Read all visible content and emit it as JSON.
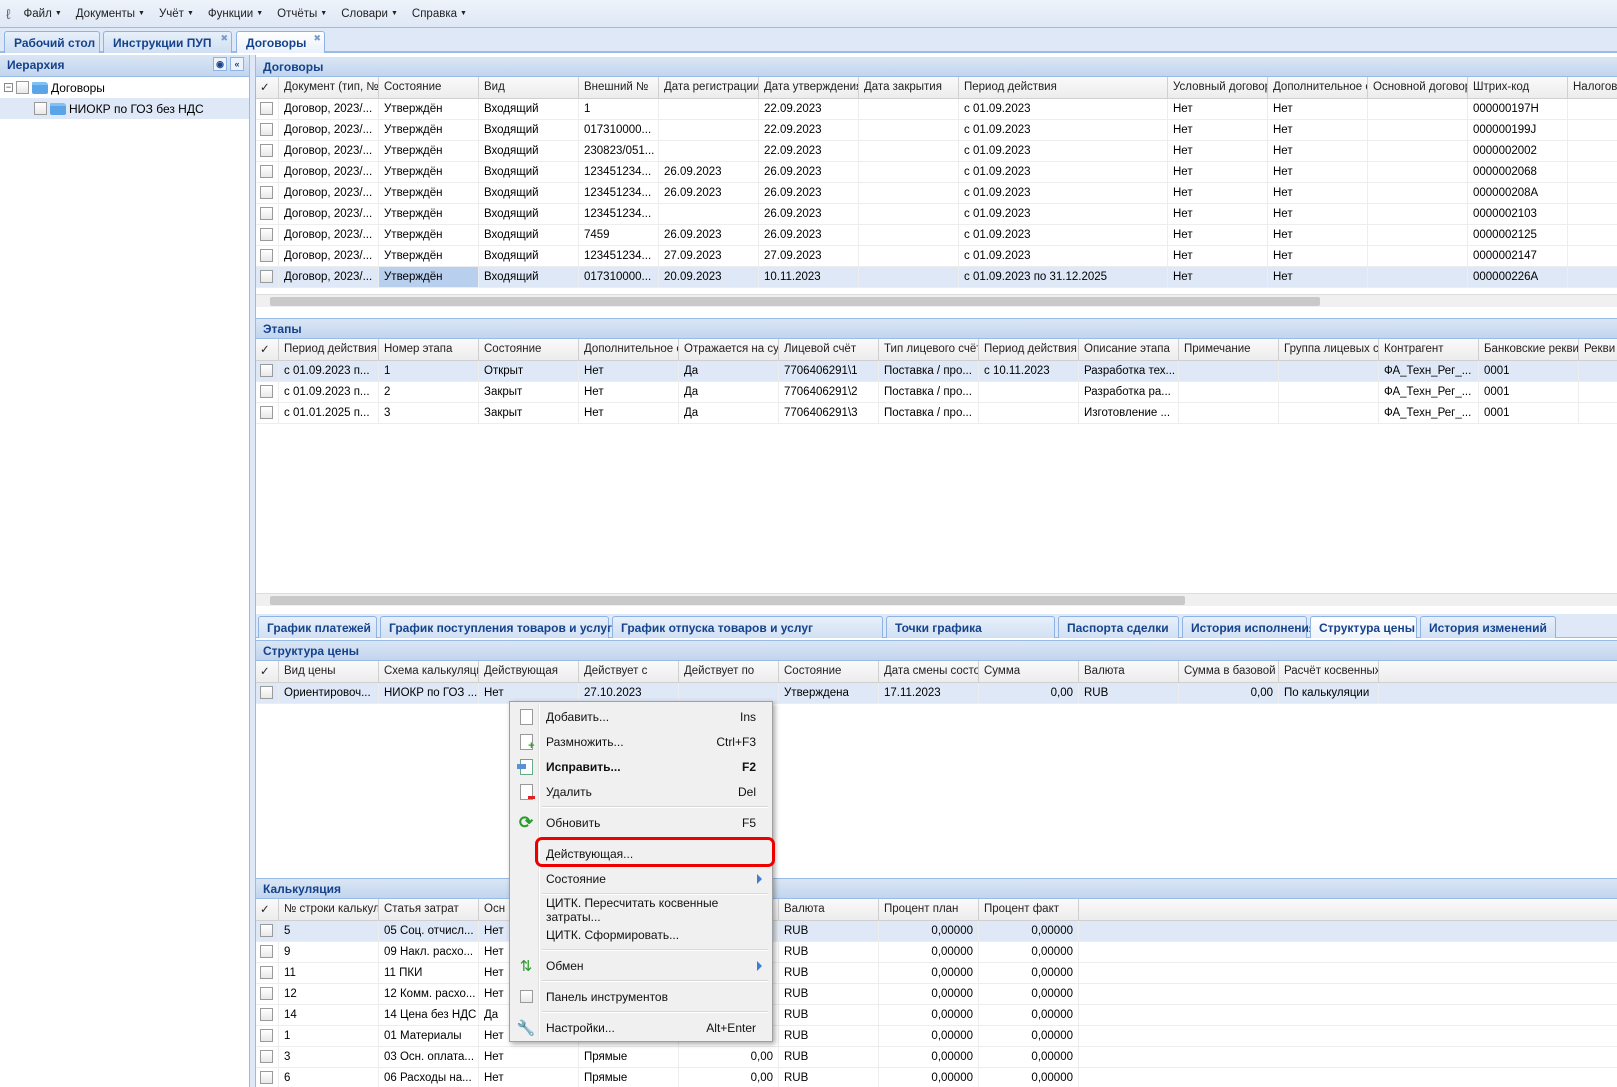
{
  "menubar": {
    "items": [
      "Файл",
      "Документы",
      "Учёт",
      "Функции",
      "Отчёты",
      "Словари",
      "Справка"
    ]
  },
  "tabs": [
    {
      "label": "Рабочий стол",
      "closable": false
    },
    {
      "label": "Инструкции ПУП",
      "closable": true
    },
    {
      "label": "Договоры",
      "closable": true,
      "active": true
    }
  ],
  "hierarchy": {
    "title": "Иерархия",
    "nodes": [
      {
        "label": "Договоры",
        "expanded": true
      },
      {
        "label": "НИОКР по ГОЗ без НДС",
        "selected": true
      }
    ]
  },
  "contracts": {
    "title": "Договоры",
    "columns": [
      "Документ (тип, №",
      "Состояние",
      "Вид",
      "Внешний №",
      "Дата регистрации.",
      "Дата утверждения",
      "Дата закрытия",
      "Период действия",
      "Условный договор",
      "Дополнительное с",
      "Основной договор",
      "Штрих-код",
      "Налогов"
    ],
    "rows": [
      [
        "Договор, 2023/...",
        "Утверждён",
        "Входящий",
        "1",
        "",
        "22.09.2023",
        "",
        "с 01.09.2023",
        "Нет",
        "Нет",
        "",
        "000000197H",
        ""
      ],
      [
        "Договор, 2023/...",
        "Утверждён",
        "Входящий",
        "017310000...",
        "",
        "22.09.2023",
        "",
        "с 01.09.2023",
        "Нет",
        "Нет",
        "",
        "000000199J",
        ""
      ],
      [
        "Договор, 2023/...",
        "Утверждён",
        "Входящий",
        "230823/051...",
        "",
        "22.09.2023",
        "",
        "с 01.09.2023",
        "Нет",
        "Нет",
        "",
        "0000002002",
        ""
      ],
      [
        "Договор, 2023/...",
        "Утверждён",
        "Входящий",
        "123451234...",
        "26.09.2023",
        "26.09.2023",
        "",
        "с 01.09.2023",
        "Нет",
        "Нет",
        "",
        "0000002068",
        ""
      ],
      [
        "Договор, 2023/...",
        "Утверждён",
        "Входящий",
        "123451234...",
        "26.09.2023",
        "26.09.2023",
        "",
        "с 01.09.2023",
        "Нет",
        "Нет",
        "",
        "000000208A",
        ""
      ],
      [
        "Договор, 2023/...",
        "Утверждён",
        "Входящий",
        "123451234...",
        "",
        "26.09.2023",
        "",
        "с 01.09.2023",
        "Нет",
        "Нет",
        "",
        "0000002103",
        ""
      ],
      [
        "Договор, 2023/...",
        "Утверждён",
        "Входящий",
        "7459",
        "26.09.2023",
        "26.09.2023",
        "",
        "с 01.09.2023",
        "Нет",
        "Нет",
        "",
        "0000002125",
        ""
      ],
      [
        "Договор, 2023/...",
        "Утверждён",
        "Входящий",
        "123451234...",
        "27.09.2023",
        "27.09.2023",
        "",
        "с 01.09.2023",
        "Нет",
        "Нет",
        "",
        "0000002147",
        ""
      ],
      [
        "Договор, 2023/...",
        "Утверждён",
        "Входящий",
        "017310000...",
        "20.09.2023",
        "10.11.2023",
        "",
        "с 01.09.2023 по 31.12.2025",
        "Нет",
        "Нет",
        "",
        "000000226A",
        ""
      ]
    ],
    "selected_row": 8
  },
  "stages": {
    "title": "Этапы",
    "columns": [
      "Период действия...",
      "Номер этапа",
      "Состояние",
      "Дополнительное с",
      "Отражается на сум",
      "Лицевой счёт",
      "Тип лицевого счёт",
      "Период действия л",
      "Описание этапа",
      "Примечание",
      "Группа лицевых сч",
      "Контрагент",
      "Банковские реквиз",
      "Рекви"
    ],
    "rows": [
      [
        "с 01.09.2023 п...",
        "1",
        "Открыт",
        "Нет",
        "Да",
        "7706406291\\1",
        "Поставка / про...",
        "с 10.11.2023",
        "Разработка тех...",
        "",
        "",
        "ФА_Техн_Рег_...",
        "0001",
        ""
      ],
      [
        "с 01.09.2023 п...",
        "2",
        "Закрыт",
        "Нет",
        "Да",
        "7706406291\\2",
        "Поставка / про...",
        "",
        "Разработка ра...",
        "",
        "",
        "ФА_Техн_Рег_...",
        "0001",
        ""
      ],
      [
        "с 01.01.2025 п...",
        "3",
        "Закрыт",
        "Нет",
        "Да",
        "7706406291\\3",
        "Поставка / про...",
        "",
        "Изготовление ...",
        "",
        "",
        "ФА_Техн_Рег_...",
        "0001",
        ""
      ]
    ],
    "selected_row": 0
  },
  "subtabs": [
    {
      "label": "График платежей"
    },
    {
      "label": "График поступления товаров и услуг"
    },
    {
      "label": "График отпуска товаров и услуг"
    },
    {
      "label": "Точки графика"
    },
    {
      "label": "Паспорта сделки"
    },
    {
      "label": "История исполнения"
    },
    {
      "label": "Структура цены",
      "active": true
    },
    {
      "label": "История изменений"
    }
  ],
  "price": {
    "title": "Структура цены",
    "columns": [
      "Вид цены",
      "Схема калькуляци",
      "Действующая",
      "Действует с",
      "Действует по",
      "Состояние",
      "Дата смены состоя",
      "Сумма",
      "Валюта",
      "Сумма в базовой в",
      "Расчёт косвенных"
    ],
    "rows": [
      [
        "Ориентировоч...",
        "НИОКР по ГОЗ ...",
        "Нет",
        "27.10.2023",
        "",
        "Утверждена",
        "17.11.2023",
        "0,00",
        "RUB",
        "0,00",
        "По калькуляции"
      ]
    ],
    "selected_row": 0
  },
  "calc": {
    "title": "Калькуляция",
    "columns": [
      "№ строки калькул",
      "Статья затрат",
      "Осн",
      "",
      "",
      "Валюта",
      "Процент план",
      "Процент факт"
    ],
    "rows": [
      [
        "5",
        "05 Соц. отчисл...",
        "Нет",
        "",
        "0,00",
        "RUB",
        "0,00000",
        "0,00000"
      ],
      [
        "9",
        "09 Накл. расхо...",
        "Нет",
        "",
        "0,00",
        "RUB",
        "0,00000",
        "0,00000"
      ],
      [
        "11",
        "11 ПКИ",
        "Нет",
        "",
        "0,00",
        "RUB",
        "0,00000",
        "0,00000"
      ],
      [
        "12",
        "12 Комм. расхо...",
        "Нет",
        "",
        "0,00",
        "RUB",
        "0,00000",
        "0,00000"
      ],
      [
        "14",
        "14 Цена без НДС",
        "Да",
        "",
        "0,00",
        "RUB",
        "0,00000",
        "0,00000"
      ],
      [
        "1",
        "01 Материалы",
        "Нет",
        "Прямые",
        "0,00",
        "RUB",
        "0,00000",
        "0,00000"
      ],
      [
        "3",
        "03 Осн. оплата...",
        "Нет",
        "Прямые",
        "0,00",
        "RUB",
        "0,00000",
        "0,00000"
      ],
      [
        "6",
        "06 Расходы на...",
        "Нет",
        "Прямые",
        "0,00",
        "RUB",
        "0,00000",
        "0,00000"
      ]
    ],
    "selected_row": 0
  },
  "context_menu": {
    "items": [
      {
        "label": "Добавить...",
        "shortcut": "Ins",
        "icon": "add-document-icon"
      },
      {
        "label": "Размножить...",
        "shortcut": "Ctrl+F3",
        "icon": "copy-document-icon"
      },
      {
        "label": "Исправить...",
        "shortcut": "F2",
        "icon": "edit-document-icon",
        "bold": true
      },
      {
        "label": "Удалить",
        "shortcut": "Del",
        "icon": "delete-document-icon"
      },
      {
        "label": "Обновить",
        "shortcut": "F5",
        "icon": "refresh-icon"
      },
      {
        "label": "Действующая...",
        "shortcut": "",
        "highlighted": true
      },
      {
        "label": "Состояние",
        "shortcut": "",
        "submenu": true
      },
      {
        "label": "ЦИТК. Пересчитать косвенные затраты...",
        "shortcut": ""
      },
      {
        "label": "ЦИТК. Сформировать...",
        "shortcut": ""
      },
      {
        "label": "Обмен",
        "shortcut": "",
        "icon": "exchange-icon",
        "submenu": true
      },
      {
        "label": "Панель инструментов",
        "shortcut": "",
        "icon": "checkbox-icon"
      },
      {
        "label": "Настройки...",
        "shortcut": "Alt+Enter",
        "icon": "wrench-icon"
      }
    ]
  },
  "colors": {
    "accent": "#15428b",
    "panel_header": "#c2d5ee",
    "selection": "#dfe8f6",
    "highlight_box": "#ee0000"
  }
}
